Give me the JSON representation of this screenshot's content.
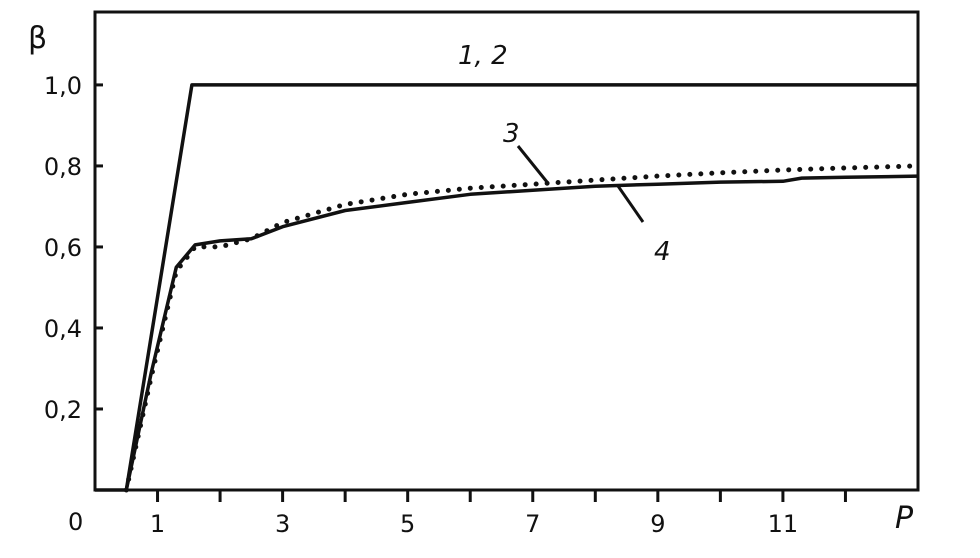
{
  "chart_data": {
    "type": "line",
    "title": "",
    "xlabel": "P",
    "ylabel": "β",
    "xlim": [
      0,
      13.16
    ],
    "ylim": [
      0,
      1.18
    ],
    "grid": false,
    "origin_label": "0",
    "x_ticks": [
      1,
      2,
      3,
      4,
      5,
      6,
      7,
      8,
      9,
      10,
      11,
      12
    ],
    "x_tick_labels": [
      "1",
      "",
      "3",
      "",
      "5",
      "",
      "7",
      "",
      "9",
      "",
      "11",
      ""
    ],
    "y_ticks": [
      0.2,
      0.4,
      0.6,
      0.8,
      1.0
    ],
    "y_tick_labels": [
      "0,2",
      "0,4",
      "0,6",
      "0,8",
      "1,0"
    ],
    "series": [
      {
        "name": "1, 2",
        "style": "solid",
        "x": [
          0,
          0.5,
          1.55,
          13.16
        ],
        "y": [
          0,
          0,
          1.0,
          1.0
        ]
      },
      {
        "name": "3",
        "style": "dotted",
        "x": [
          0.5,
          0.9,
          1.3,
          1.6,
          2.0,
          2.5,
          3,
          4,
          5,
          6,
          7,
          8,
          9,
          10,
          11,
          12,
          13.16
        ],
        "y": [
          0,
          0.28,
          0.54,
          0.6,
          0.6,
          0.62,
          0.66,
          0.705,
          0.73,
          0.745,
          0.755,
          0.765,
          0.775,
          0.783,
          0.79,
          0.795,
          0.8
        ]
      },
      {
        "name": "4",
        "style": "solid",
        "x": [
          0.5,
          0.9,
          1.3,
          1.6,
          2.0,
          2.5,
          3,
          4,
          5,
          6,
          7,
          8,
          9,
          10,
          11,
          11.3,
          12,
          13.16
        ],
        "y": [
          0,
          0.29,
          0.55,
          0.605,
          0.615,
          0.62,
          0.65,
          0.69,
          0.71,
          0.73,
          0.74,
          0.75,
          0.755,
          0.76,
          0.762,
          0.77,
          0.772,
          0.775
        ]
      }
    ],
    "annotations": [
      {
        "text": "1, 2",
        "series": "1, 2"
      },
      {
        "text": "3",
        "series": "3"
      },
      {
        "text": "4",
        "series": "4"
      }
    ]
  }
}
